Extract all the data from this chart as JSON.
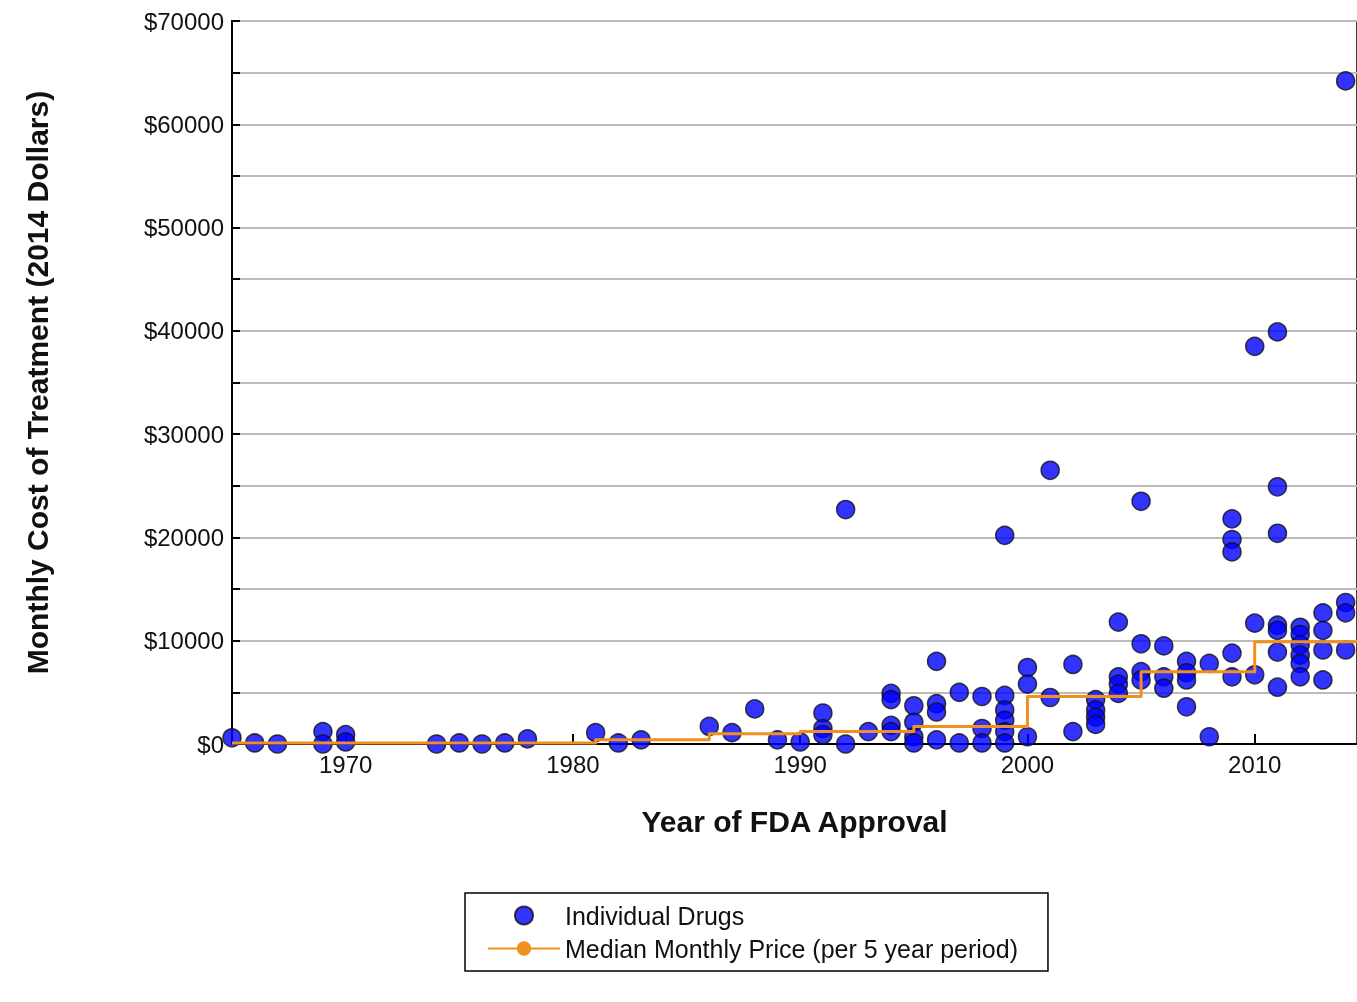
{
  "chart_data": {
    "type": "scatter",
    "xlabel": "Year of FDA Approval",
    "ylabel": "Monthly Cost of Treatment (2014 Dollars)",
    "xlim": [
      1965,
      2014.5
    ],
    "xticks": [
      1970,
      1980,
      1990,
      2000,
      2010
    ],
    "ylim": [
      0,
      70000
    ],
    "yticks": [
      {
        "value": 0,
        "label": "$0"
      },
      {
        "value": 5000,
        "label": null
      },
      {
        "value": 10000,
        "label": "$10000"
      },
      {
        "value": 15000,
        "label": null
      },
      {
        "value": 20000,
        "label": "$20000"
      },
      {
        "value": 25000,
        "label": null
      },
      {
        "value": 30000,
        "label": "$30000"
      },
      {
        "value": 35000,
        "label": null
      },
      {
        "value": 40000,
        "label": "$40000"
      },
      {
        "value": 45000,
        "label": null
      },
      {
        "value": 50000,
        "label": "$50000"
      },
      {
        "value": 55000,
        "label": null
      },
      {
        "value": 60000,
        "label": "$60000"
      },
      {
        "value": 65000,
        "label": null
      },
      {
        "value": 70000,
        "label": "$70000"
      }
    ],
    "grid": "y",
    "legend": "bottom",
    "marker": "circle",
    "series": [
      {
        "name": "Individual Drugs",
        "color": "#0000ff",
        "x": [
          1965,
          1966,
          1967,
          1969,
          1969,
          1970,
          1970,
          1974,
          1975,
          1976,
          1977,
          1978,
          1981,
          1982,
          1983,
          1986,
          1987,
          1988,
          1989,
          1990,
          1991,
          1991,
          1991,
          1992,
          1992,
          1993,
          1994,
          1994,
          1994,
          1994,
          1995,
          1995,
          1995,
          1995,
          1996,
          1996,
          1996,
          1996,
          1997,
          1997,
          1998,
          1998,
          1998,
          1999,
          1999,
          1999,
          1999,
          1999,
          1999,
          2000,
          2000,
          2000,
          2001,
          2001,
          2002,
          2002,
          2003,
          2003,
          2003,
          2003,
          2004,
          2004,
          2004,
          2004,
          2005,
          2005,
          2005,
          2005,
          2006,
          2006,
          2006,
          2007,
          2007,
          2007,
          2007,
          2008,
          2008,
          2009,
          2009,
          2009,
          2009,
          2009,
          2010,
          2010,
          2010,
          2011,
          2011,
          2011,
          2011,
          2011,
          2011,
          2011,
          2012,
          2012,
          2012,
          2012,
          2012,
          2012,
          2013,
          2013,
          2013,
          2013,
          2014,
          2014,
          2014,
          2014
        ],
        "values": [
          600,
          100,
          0,
          1200,
          0,
          900,
          200,
          0,
          100,
          0,
          100,
          500,
          1100,
          100,
          400,
          1700,
          1100,
          3400,
          400,
          200,
          3000,
          1500,
          900,
          0,
          22700,
          1200,
          4900,
          4300,
          1800,
          1200,
          3700,
          2100,
          700,
          100,
          8000,
          3900,
          3100,
          400,
          5000,
          100,
          4600,
          1500,
          100,
          4700,
          3300,
          2300,
          1200,
          100,
          20200,
          7400,
          5800,
          700,
          4500,
          26500,
          7700,
          1200,
          4300,
          3300,
          2600,
          1900,
          11800,
          6500,
          5800,
          4900,
          9700,
          7000,
          6200,
          23500,
          9500,
          6500,
          5400,
          8000,
          6900,
          6200,
          3600,
          7800,
          700,
          8800,
          6500,
          21800,
          19800,
          18600,
          11700,
          6700,
          38500,
          11500,
          11000,
          8900,
          5500,
          39900,
          24900,
          20400,
          11300,
          10600,
          9600,
          8600,
          7800,
          6500,
          12700,
          11000,
          9100,
          6200,
          13700,
          12700,
          9100,
          64200
        ]
      },
      {
        "name": "Median Monthly Price (per 5 year period)",
        "type": "step",
        "marker": "none",
        "color": "#f0901e",
        "x": [
          1965,
          1981,
          1986,
          1990,
          1995,
          2000,
          2005,
          2010,
          2014.5
        ],
        "values": [
          100,
          400,
          1000,
          1200,
          1700,
          4600,
          7000,
          9900,
          9900
        ]
      }
    ]
  }
}
